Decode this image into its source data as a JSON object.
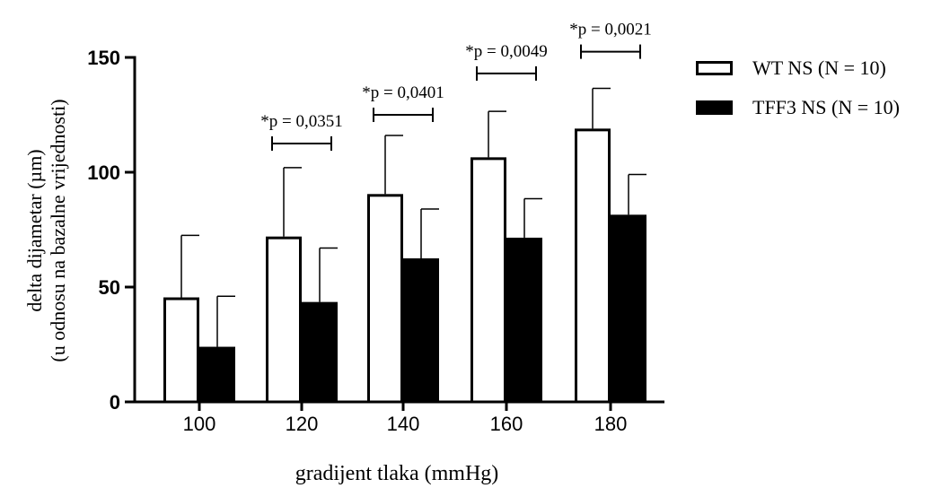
{
  "chart_data": {
    "type": "bar",
    "title": "",
    "xlabel": "gradijent tlaka (mmHg)",
    "ylabel_lines": [
      "delta dijametar (µm)",
      "(u odnosu na bazalne vrijednosti)"
    ],
    "categories": [
      "100",
      "120",
      "140",
      "160",
      "180"
    ],
    "ylim": [
      0,
      150
    ],
    "y_ticks": [
      "0",
      "50",
      "100",
      "150"
    ],
    "series": [
      {
        "name": "WT NS (N = 10)",
        "fill": "#ffffff",
        "values": [
          45.5,
          72,
          90.5,
          106.5,
          119
        ],
        "errors": [
          27,
          30,
          25.5,
          20,
          17.5
        ]
      },
      {
        "name": "TFF3 NS (N = 10)",
        "fill": "#000000",
        "values": [
          24,
          43.5,
          62.5,
          71.5,
          81.5
        ],
        "errors": [
          22,
          23.5,
          21.5,
          17,
          17.5
        ]
      }
    ],
    "annotations": [
      {
        "category_index": 1,
        "text": "*p = 0,0351",
        "bracket_y": 112.5
      },
      {
        "category_index": 2,
        "text": "*p = 0,0401",
        "bracket_y": 125
      },
      {
        "category_index": 3,
        "text": "*p = 0,0049",
        "bracket_y": 143
      },
      {
        "category_index": 4,
        "text": "*p = 0,0021",
        "bracket_y": 152.5
      }
    ],
    "legend_position": "top-right",
    "grid": false
  }
}
